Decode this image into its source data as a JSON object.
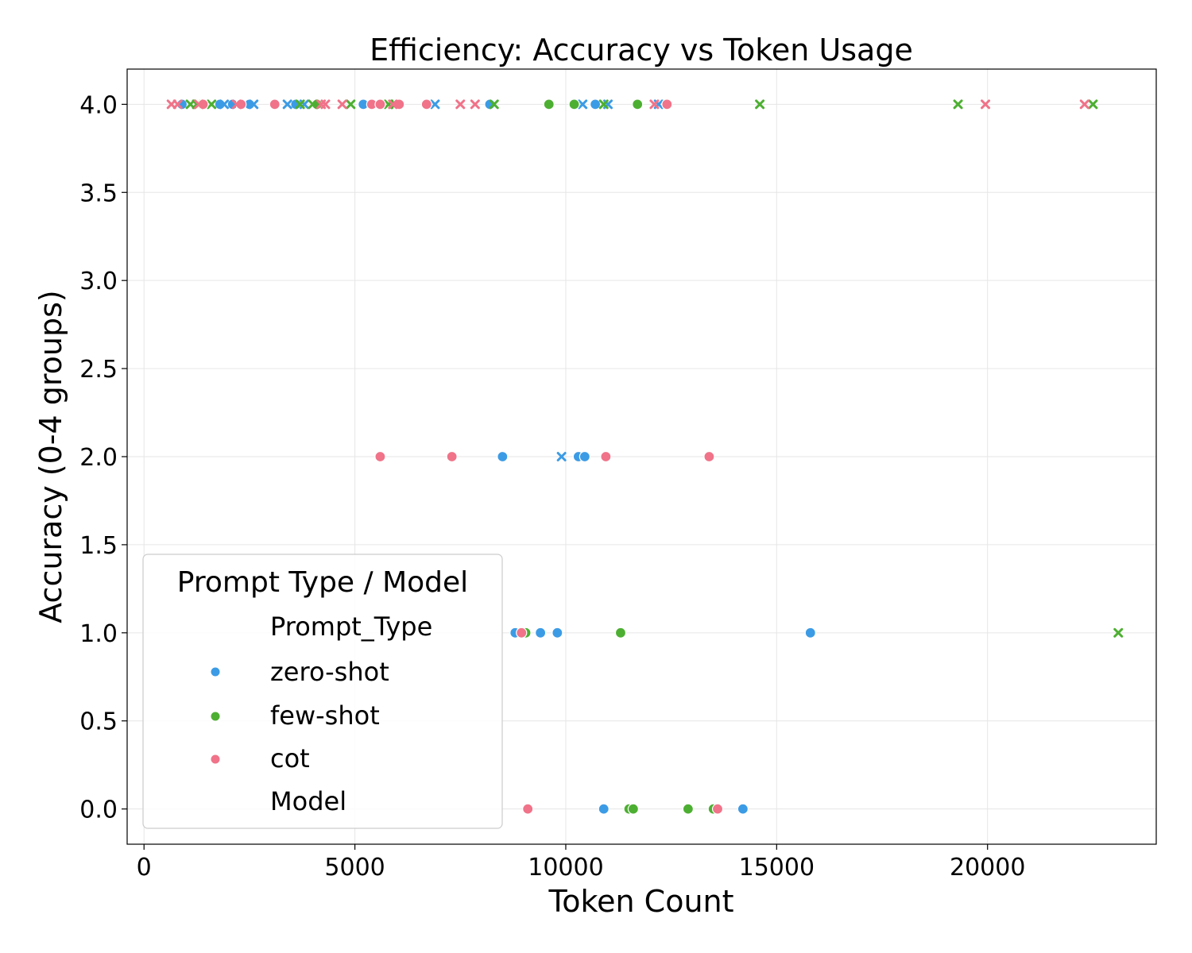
{
  "chart_data": {
    "type": "scatter",
    "title": "Efficiency: Accuracy vs Token Usage",
    "xlabel": "Token Count",
    "ylabel": "Accuracy (0-4 groups)",
    "xlim": [
      -400,
      24000
    ],
    "ylim": [
      -0.2,
      4.2
    ],
    "xticks": [
      0,
      5000,
      10000,
      15000,
      20000
    ],
    "yticks": [
      0.0,
      0.5,
      1.0,
      1.5,
      2.0,
      2.5,
      3.0,
      3.5,
      4.0
    ],
    "xtick_labels": [
      "0",
      "5000",
      "10000",
      "15000",
      "20000"
    ],
    "ytick_labels": [
      "0.0",
      "0.5",
      "1.0",
      "1.5",
      "2.0",
      "2.5",
      "3.0",
      "3.5",
      "4.0"
    ],
    "grid": true,
    "legend": {
      "title": "Prompt Type / Model",
      "placement": "lower-left",
      "hue_heading": "Prompt_Type",
      "style_heading": "Model"
    },
    "series": [
      {
        "name": "zero-shot",
        "color": "#3c9be5",
        "points": [
          {
            "x": 900,
            "y": 4,
            "marker": "circle"
          },
          {
            "x": 1800,
            "y": 4,
            "marker": "circle"
          },
          {
            "x": 2100,
            "y": 4,
            "marker": "circle"
          },
          {
            "x": 2500,
            "y": 4,
            "marker": "circle"
          },
          {
            "x": 3600,
            "y": 4,
            "marker": "circle"
          },
          {
            "x": 5200,
            "y": 4,
            "marker": "circle"
          },
          {
            "x": 8200,
            "y": 4,
            "marker": "circle"
          },
          {
            "x": 10700,
            "y": 4,
            "marker": "circle"
          },
          {
            "x": 1900,
            "y": 4,
            "marker": "x"
          },
          {
            "x": 2600,
            "y": 4,
            "marker": "x"
          },
          {
            "x": 3400,
            "y": 4,
            "marker": "x"
          },
          {
            "x": 3800,
            "y": 4,
            "marker": "x"
          },
          {
            "x": 5500,
            "y": 4,
            "marker": "x"
          },
          {
            "x": 6900,
            "y": 4,
            "marker": "x"
          },
          {
            "x": 10400,
            "y": 4,
            "marker": "x"
          },
          {
            "x": 11000,
            "y": 4,
            "marker": "x"
          },
          {
            "x": 12200,
            "y": 4,
            "marker": "x"
          },
          {
            "x": 8500,
            "y": 2,
            "marker": "circle"
          },
          {
            "x": 10300,
            "y": 2,
            "marker": "circle"
          },
          {
            "x": 10450,
            "y": 2,
            "marker": "circle"
          },
          {
            "x": 9900,
            "y": 2,
            "marker": "x"
          },
          {
            "x": 8800,
            "y": 1,
            "marker": "circle"
          },
          {
            "x": 9400,
            "y": 1,
            "marker": "circle"
          },
          {
            "x": 9800,
            "y": 1,
            "marker": "circle"
          },
          {
            "x": 15800,
            "y": 1,
            "marker": "circle"
          },
          {
            "x": 10900,
            "y": 0,
            "marker": "circle"
          },
          {
            "x": 14200,
            "y": 0,
            "marker": "circle"
          }
        ]
      },
      {
        "name": "few-shot",
        "color": "#4daf32",
        "points": [
          {
            "x": 4100,
            "y": 4,
            "marker": "circle"
          },
          {
            "x": 9600,
            "y": 4,
            "marker": "circle"
          },
          {
            "x": 10200,
            "y": 4,
            "marker": "circle"
          },
          {
            "x": 11700,
            "y": 4,
            "marker": "circle"
          },
          {
            "x": 1100,
            "y": 4,
            "marker": "x"
          },
          {
            "x": 1250,
            "y": 4,
            "marker": "x"
          },
          {
            "x": 1600,
            "y": 4,
            "marker": "x"
          },
          {
            "x": 3700,
            "y": 4,
            "marker": "x"
          },
          {
            "x": 4000,
            "y": 4,
            "marker": "x"
          },
          {
            "x": 4900,
            "y": 4,
            "marker": "x"
          },
          {
            "x": 5800,
            "y": 4,
            "marker": "x"
          },
          {
            "x": 5950,
            "y": 4,
            "marker": "x"
          },
          {
            "x": 8300,
            "y": 4,
            "marker": "x"
          },
          {
            "x": 10900,
            "y": 4,
            "marker": "x"
          },
          {
            "x": 14600,
            "y": 4,
            "marker": "x"
          },
          {
            "x": 19300,
            "y": 4,
            "marker": "x"
          },
          {
            "x": 22500,
            "y": 4,
            "marker": "x"
          },
          {
            "x": 9050,
            "y": 1,
            "marker": "circle"
          },
          {
            "x": 11300,
            "y": 1,
            "marker": "circle"
          },
          {
            "x": 23100,
            "y": 1,
            "marker": "x"
          },
          {
            "x": 11500,
            "y": 0,
            "marker": "circle"
          },
          {
            "x": 11600,
            "y": 0,
            "marker": "circle"
          },
          {
            "x": 12900,
            "y": 0,
            "marker": "circle"
          },
          {
            "x": 13500,
            "y": 0,
            "marker": "circle"
          }
        ]
      },
      {
        "name": "cot",
        "color": "#f07389",
        "points": [
          {
            "x": 1400,
            "y": 4,
            "marker": "circle"
          },
          {
            "x": 2300,
            "y": 4,
            "marker": "circle"
          },
          {
            "x": 3100,
            "y": 4,
            "marker": "circle"
          },
          {
            "x": 5400,
            "y": 4,
            "marker": "circle"
          },
          {
            "x": 5600,
            "y": 4,
            "marker": "circle"
          },
          {
            "x": 6050,
            "y": 4,
            "marker": "circle"
          },
          {
            "x": 6700,
            "y": 4,
            "marker": "circle"
          },
          {
            "x": 12400,
            "y": 4,
            "marker": "circle"
          },
          {
            "x": 650,
            "y": 4,
            "marker": "x"
          },
          {
            "x": 800,
            "y": 4,
            "marker": "x"
          },
          {
            "x": 1300,
            "y": 4,
            "marker": "x"
          },
          {
            "x": 2200,
            "y": 4,
            "marker": "x"
          },
          {
            "x": 4200,
            "y": 4,
            "marker": "x"
          },
          {
            "x": 4300,
            "y": 4,
            "marker": "x"
          },
          {
            "x": 4700,
            "y": 4,
            "marker": "x"
          },
          {
            "x": 5900,
            "y": 4,
            "marker": "x"
          },
          {
            "x": 7500,
            "y": 4,
            "marker": "x"
          },
          {
            "x": 7850,
            "y": 4,
            "marker": "x"
          },
          {
            "x": 12100,
            "y": 4,
            "marker": "x"
          },
          {
            "x": 19950,
            "y": 4,
            "marker": "x"
          },
          {
            "x": 22300,
            "y": 4,
            "marker": "x"
          },
          {
            "x": 5600,
            "y": 2,
            "marker": "circle"
          },
          {
            "x": 7300,
            "y": 2,
            "marker": "circle"
          },
          {
            "x": 10950,
            "y": 2,
            "marker": "circle"
          },
          {
            "x": 13400,
            "y": 2,
            "marker": "circle"
          },
          {
            "x": 8950,
            "y": 1,
            "marker": "circle"
          },
          {
            "x": 9100,
            "y": 0,
            "marker": "circle"
          },
          {
            "x": 13600,
            "y": 0,
            "marker": "circle"
          }
        ]
      }
    ]
  }
}
